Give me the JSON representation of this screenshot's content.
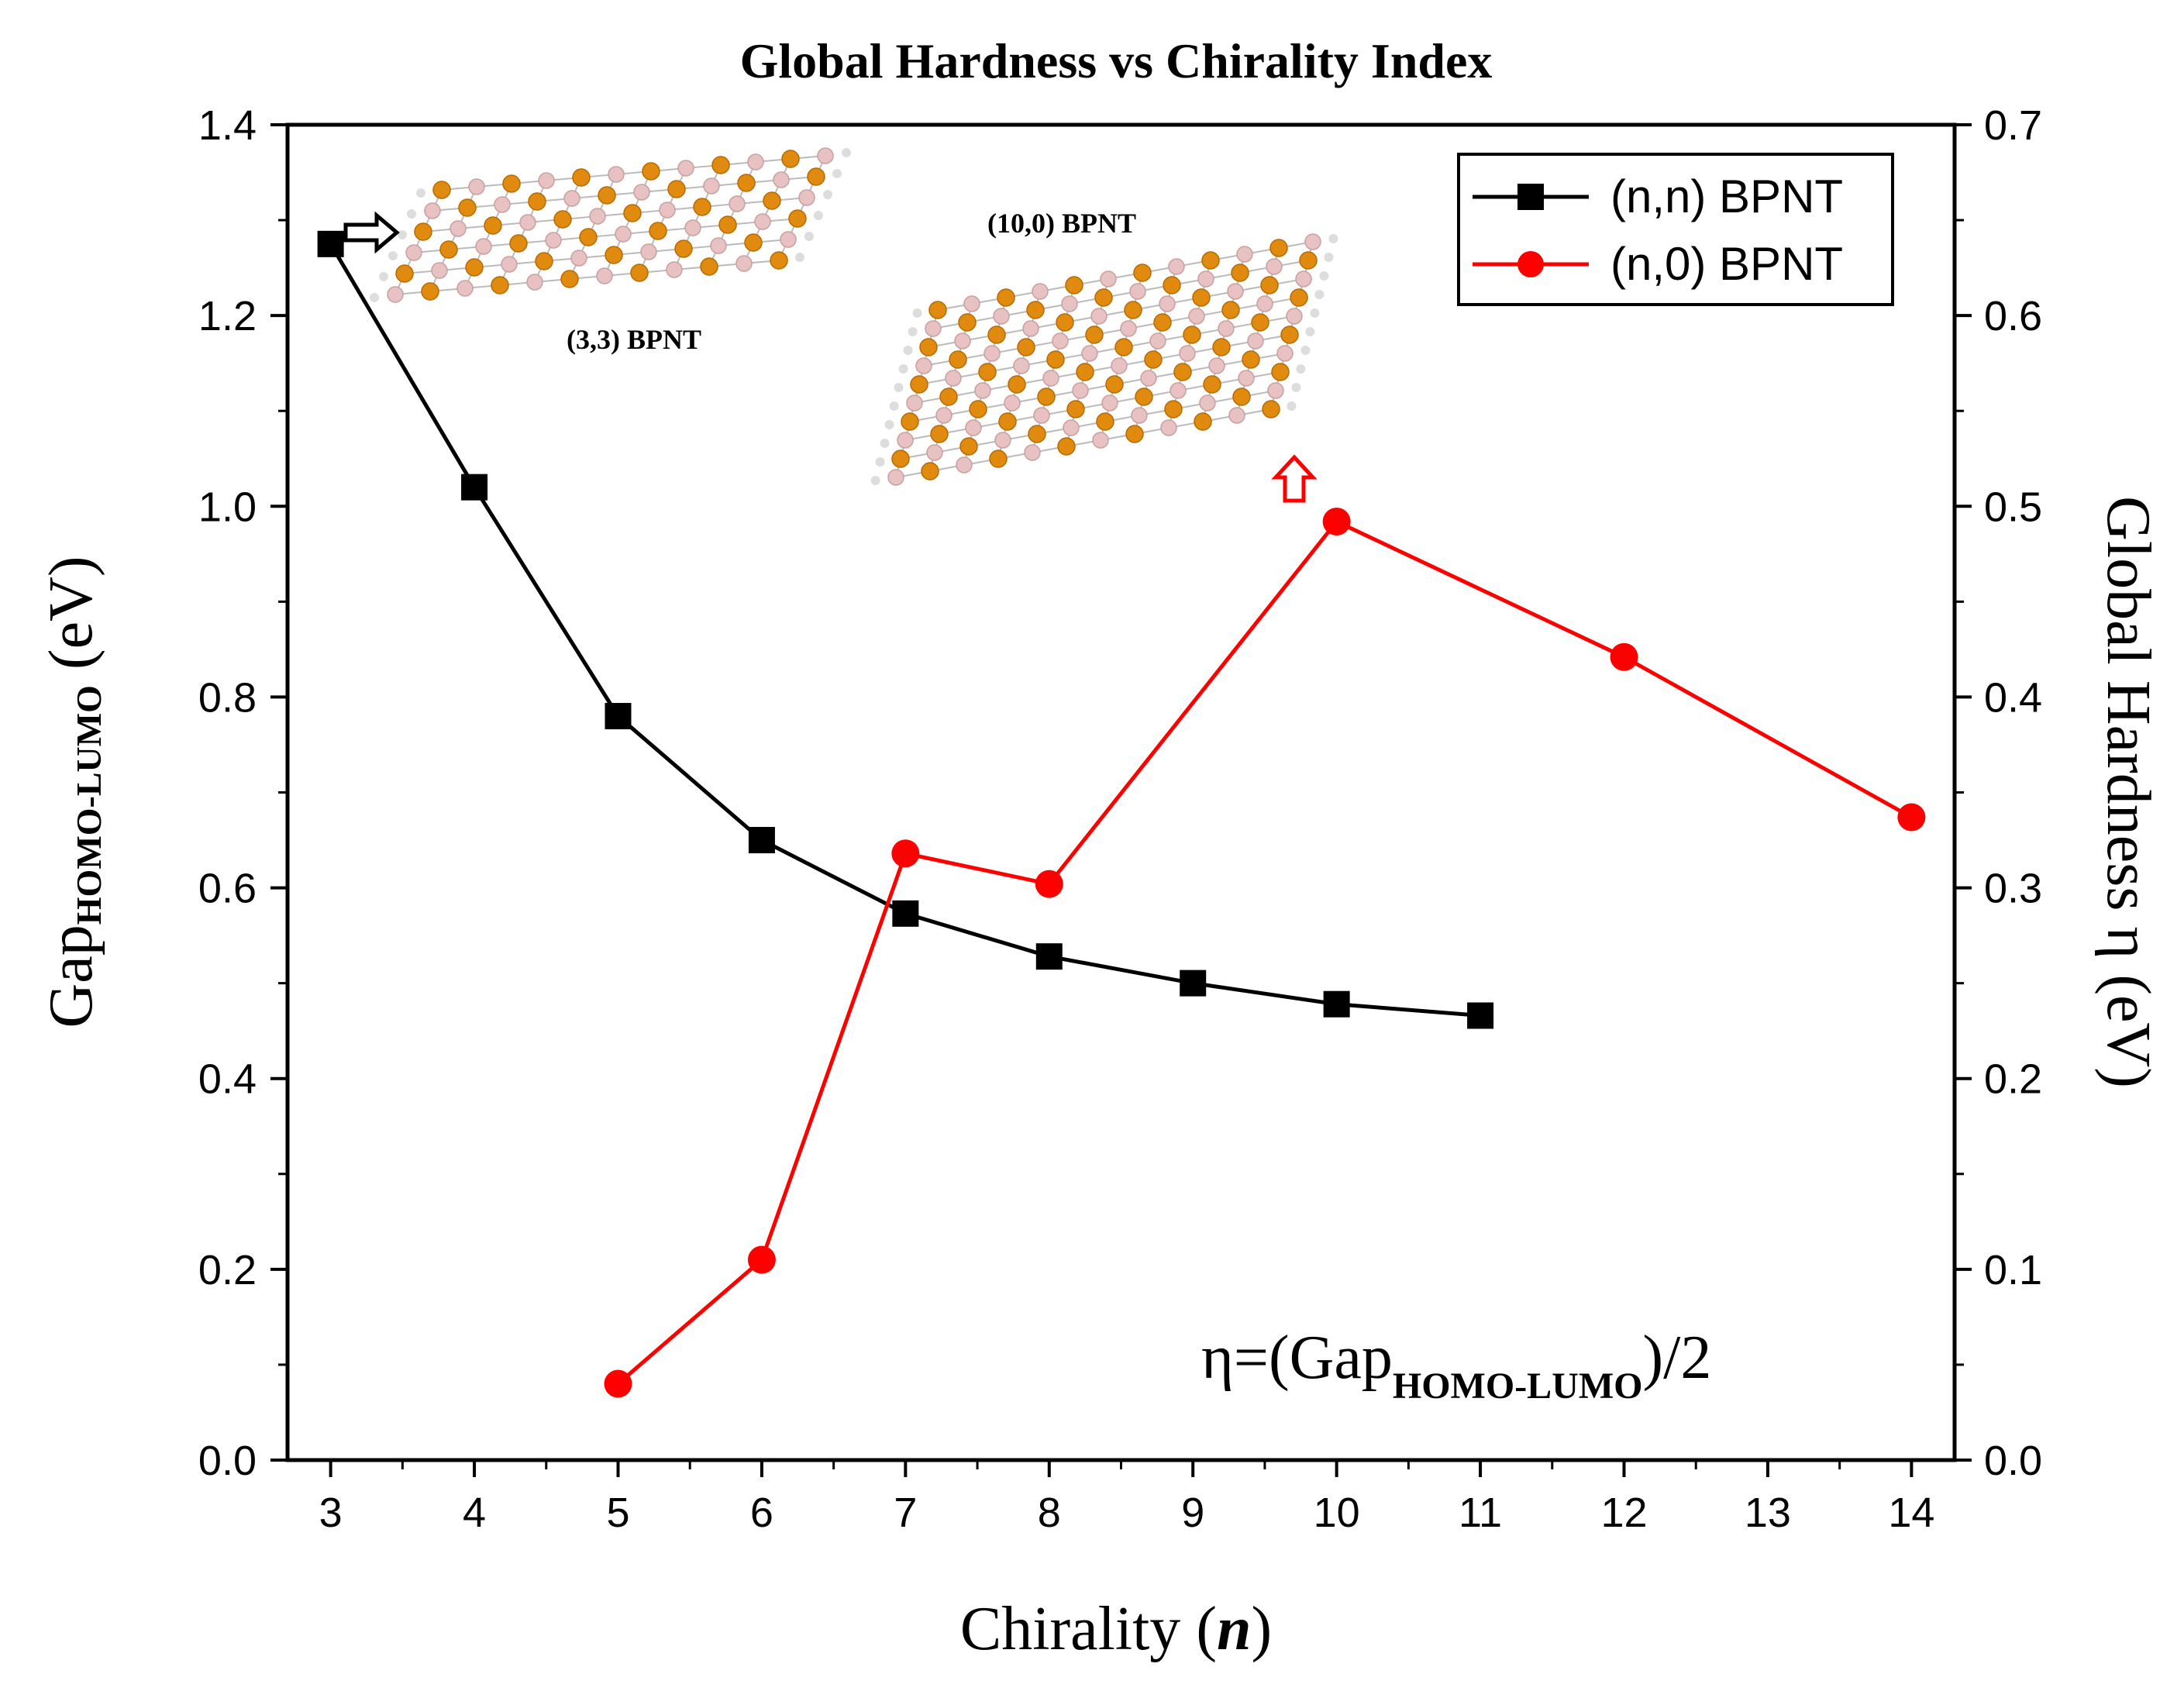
{
  "chart_data": {
    "type": "line",
    "title": "Global Hardness vs Chirality Index",
    "xlabel": "Chirality",
    "xlabel_var": "n",
    "ylabel_left": {
      "main": "Gap",
      "sub": "HOMO-LUMO",
      "unit": "(eV)"
    },
    "ylabel_right": "Global Hardness η (eV)",
    "xlim": [
      2.7,
      14.3
    ],
    "ylim_left": [
      0,
      1.4
    ],
    "ylim_right": [
      0,
      0.7
    ],
    "x_ticks": [
      "3",
      "4",
      "5",
      "6",
      "7",
      "8",
      "9",
      "10",
      "11",
      "12",
      "13",
      "14"
    ],
    "y_left_ticks": [
      "0.0",
      "0.2",
      "0.4",
      "0.6",
      "0.8",
      "1.0",
      "1.2",
      "1.4"
    ],
    "y_right_ticks": [
      "0.0",
      "0.1",
      "0.2",
      "0.3",
      "0.4",
      "0.5",
      "0.6",
      "0.7"
    ],
    "series": [
      {
        "name": "(n,n) BPNT",
        "axis": "left",
        "color": "#000000",
        "marker": "square",
        "x": [
          3,
          4,
          5,
          6,
          7,
          8,
          9,
          10,
          11
        ],
        "y": [
          1.275,
          1.02,
          0.78,
          0.65,
          0.573,
          0.528,
          0.5,
          0.478,
          0.466
        ]
      },
      {
        "name": "(n,0) BPNT",
        "axis": "right",
        "color": "#ff0000",
        "marker": "circle",
        "x": [
          5,
          6,
          7,
          8,
          10,
          12,
          14
        ],
        "y": [
          0.04,
          0.105,
          0.318,
          0.302,
          0.492,
          0.421,
          0.337
        ]
      }
    ],
    "legend_position": "top-right",
    "annotations": {
      "formula_main": "η=(Gap",
      "formula_sub": "HOMO-LUMO",
      "formula_end": ")/2",
      "inset_33": "(3,3) BPNT",
      "inset_100": "(10,0) BPNT"
    },
    "colors": {
      "p_atom": "#e08a10",
      "b_atom": "#e8c2c2",
      "bond": "#bbbbbb",
      "h_atom": "#dddddd"
    }
  }
}
